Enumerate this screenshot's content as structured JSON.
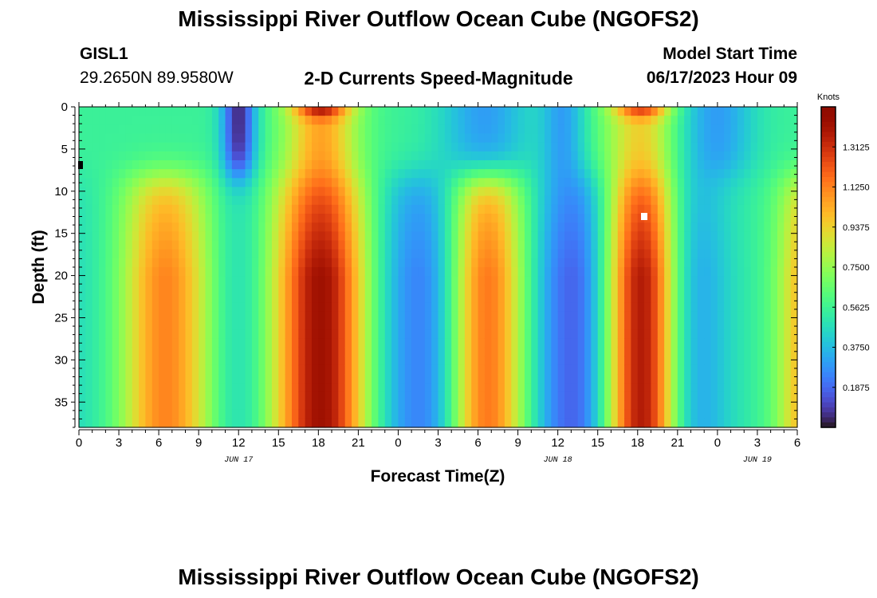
{
  "header": {
    "title": "Mississippi River Outflow Ocean Cube (NGOFS2)",
    "station_id": "GISL1",
    "coords": "29.2650N  89.9580W",
    "subtitle": "2-D Currents Speed-Magnitude",
    "model_start_label": "Model Start Time",
    "model_start_value": "06/17/2023 Hour 09",
    "bottom_title": "Mississippi River Outflow Ocean Cube (NGOFS2)"
  },
  "chart_data": {
    "type": "heatmap",
    "xlabel": "Forecast Time(Z)",
    "ylabel": "Depth (ft)",
    "x_tick_labels": [
      "0",
      "3",
      "6",
      "9",
      "12",
      "15",
      "18",
      "21",
      "0",
      "3",
      "6",
      "9",
      "12",
      "15",
      "18",
      "21",
      "0",
      "3",
      "6"
    ],
    "x_range_hours": [
      0,
      54
    ],
    "date_labels": [
      {
        "text": "JUN 17",
        "hour": 12
      },
      {
        "text": "JUN 18",
        "hour": 36
      },
      {
        "text": "JUN 19",
        "hour": 51
      }
    ],
    "y_ticks": [
      0,
      5,
      10,
      15,
      20,
      25,
      30,
      35
    ],
    "y_range_ft": [
      0,
      38
    ],
    "colorbar": {
      "unit": "Knots",
      "range": [
        0.0,
        1.5
      ],
      "ticks": [
        "1.3125",
        "1.1250",
        "0.9375",
        "0.7500",
        "0.5625",
        "0.3750",
        "0.1875"
      ],
      "tick_values": [
        1.3125,
        1.125,
        0.9375,
        0.75,
        0.5625,
        0.375,
        0.1875
      ]
    },
    "speed_model": {
      "near_surface_depth_ft": 8,
      "surface_blend_ft": 2.5,
      "lower_troughs": [
        {
          "hour": -1.5,
          "depth": 0.45,
          "width": 2.2
        },
        {
          "hour": 12,
          "depth": 0.5,
          "width": 1.1
        },
        {
          "hour": 25.5,
          "depth": 0.25,
          "width": 2.0
        },
        {
          "hour": 37,
          "depth": 0.18,
          "width": 2.0
        },
        {
          "hour": 47,
          "depth": 0.35,
          "width": 1.8
        }
      ],
      "lower_peaks": [
        {
          "hour": 6.5,
          "amp": 1.12,
          "width": 2.4
        },
        {
          "hour": 18.2,
          "amp": 1.42,
          "width": 2.5
        },
        {
          "hour": 30.5,
          "amp": 1.18,
          "width": 2.3
        },
        {
          "hour": 42.3,
          "amp": 1.44,
          "width": 2.4
        },
        {
          "hour": 54.8,
          "amp": 1.05,
          "width": 1.6
        }
      ],
      "upper_peaks": [
        {
          "hour": 18.2,
          "amp": 1.05,
          "width": 2.0
        },
        {
          "hour": 42.3,
          "amp": 0.95,
          "width": 2.0
        }
      ],
      "upper_lows": [
        {
          "hour": 12,
          "amp": 0.05,
          "width": 0.9
        },
        {
          "hour": 30.5,
          "amp": 0.3,
          "width": 2.4
        },
        {
          "hour": 36.3,
          "amp": 0.3,
          "width": 1.2
        },
        {
          "hour": 48,
          "amp": 0.3,
          "width": 2.0
        }
      ],
      "background": 0.55
    }
  },
  "colors": {
    "colormap_turbo": true,
    "frame": "#000000"
  }
}
